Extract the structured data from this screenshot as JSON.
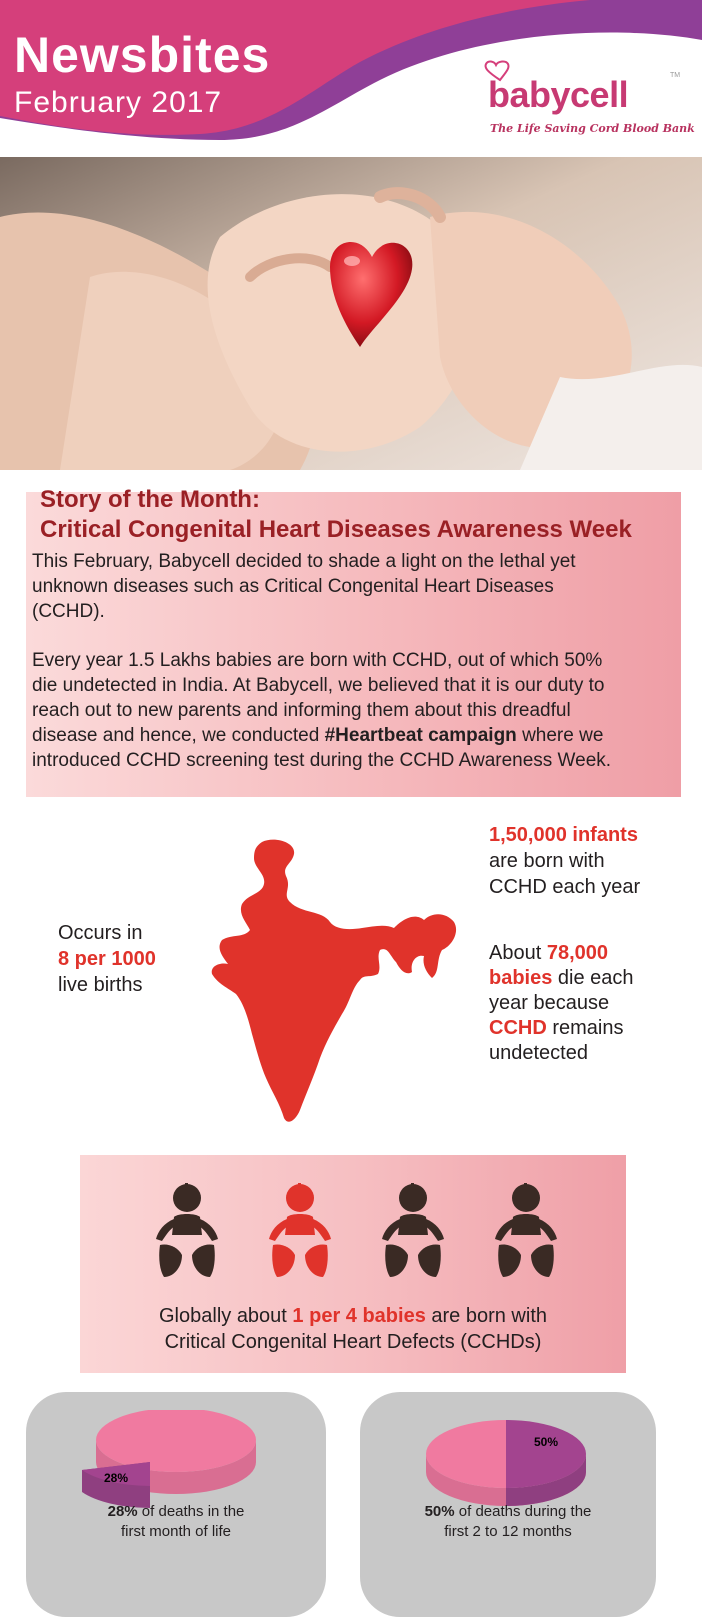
{
  "header": {
    "title": "Newsbites",
    "subtitle": "February 2017",
    "logo_word": "babycell",
    "logo_tm": "TM",
    "tagline": "The Life Saving Cord Blood Bank",
    "colors": {
      "pink": "#d53f7b",
      "purple": "#8f3f97"
    }
  },
  "story": {
    "heading_1": "Story of the Month:",
    "heading_2": "Critical Congenital Heart Diseases Awareness Week",
    "para_1_lines": [
      "This February, Babycell decided to shade a light on the lethal yet",
      "unknown diseases such as Critical Congenital Heart Diseases",
      "(CCHD)."
    ],
    "para_2_lines": [
      "Every year 1.5 Lakhs babies are born with CCHD, out of which 50%",
      "die undetected in India. At Babycell, we believed that it is our duty to",
      "reach out to new parents and informing them about this dreadful"
    ],
    "para_2_line4_pre": "disease and hence, we conducted ",
    "para_2_line4_bold": "#Heartbeat campaign",
    "para_2_line4_post": " where we",
    "para_2_line5": "introduced CCHD screening test during the CCHD Awareness Week."
  },
  "stats": {
    "left_1": "Occurs in",
    "left_2": "8 per 1000",
    "left_3": "live births",
    "right_a_1": "1,50,000 infants",
    "right_a_2": "are born with",
    "right_a_3": "CCHD each year",
    "right_b_1_pre": "About ",
    "right_b_1_red": "78,000",
    "right_b_2_red": "babies",
    "right_b_2_post": " die each",
    "right_b_3": "year because",
    "right_b_4_red": "CCHD",
    "right_b_4_post": " remains",
    "right_b_5": "undetected"
  },
  "babies": {
    "line_1_pre": "Globally about ",
    "line_1_red": "1 per 4 babies",
    "line_1_post": " are born with",
    "line_2": "Critical Congenital Heart Defects (CCHDs)",
    "highlighted_index": 1,
    "count": 4
  },
  "pies": [
    {
      "slice_label": "28%",
      "value": 28,
      "caption_bold": "28%",
      "caption_rest": " of deaths in the",
      "caption_line2": "first month of life"
    },
    {
      "slice_label": "50%",
      "value": 50,
      "caption_bold": "50%",
      "caption_rest": " of deaths during the",
      "caption_line2": "first 2 to 12 months"
    }
  ]
}
